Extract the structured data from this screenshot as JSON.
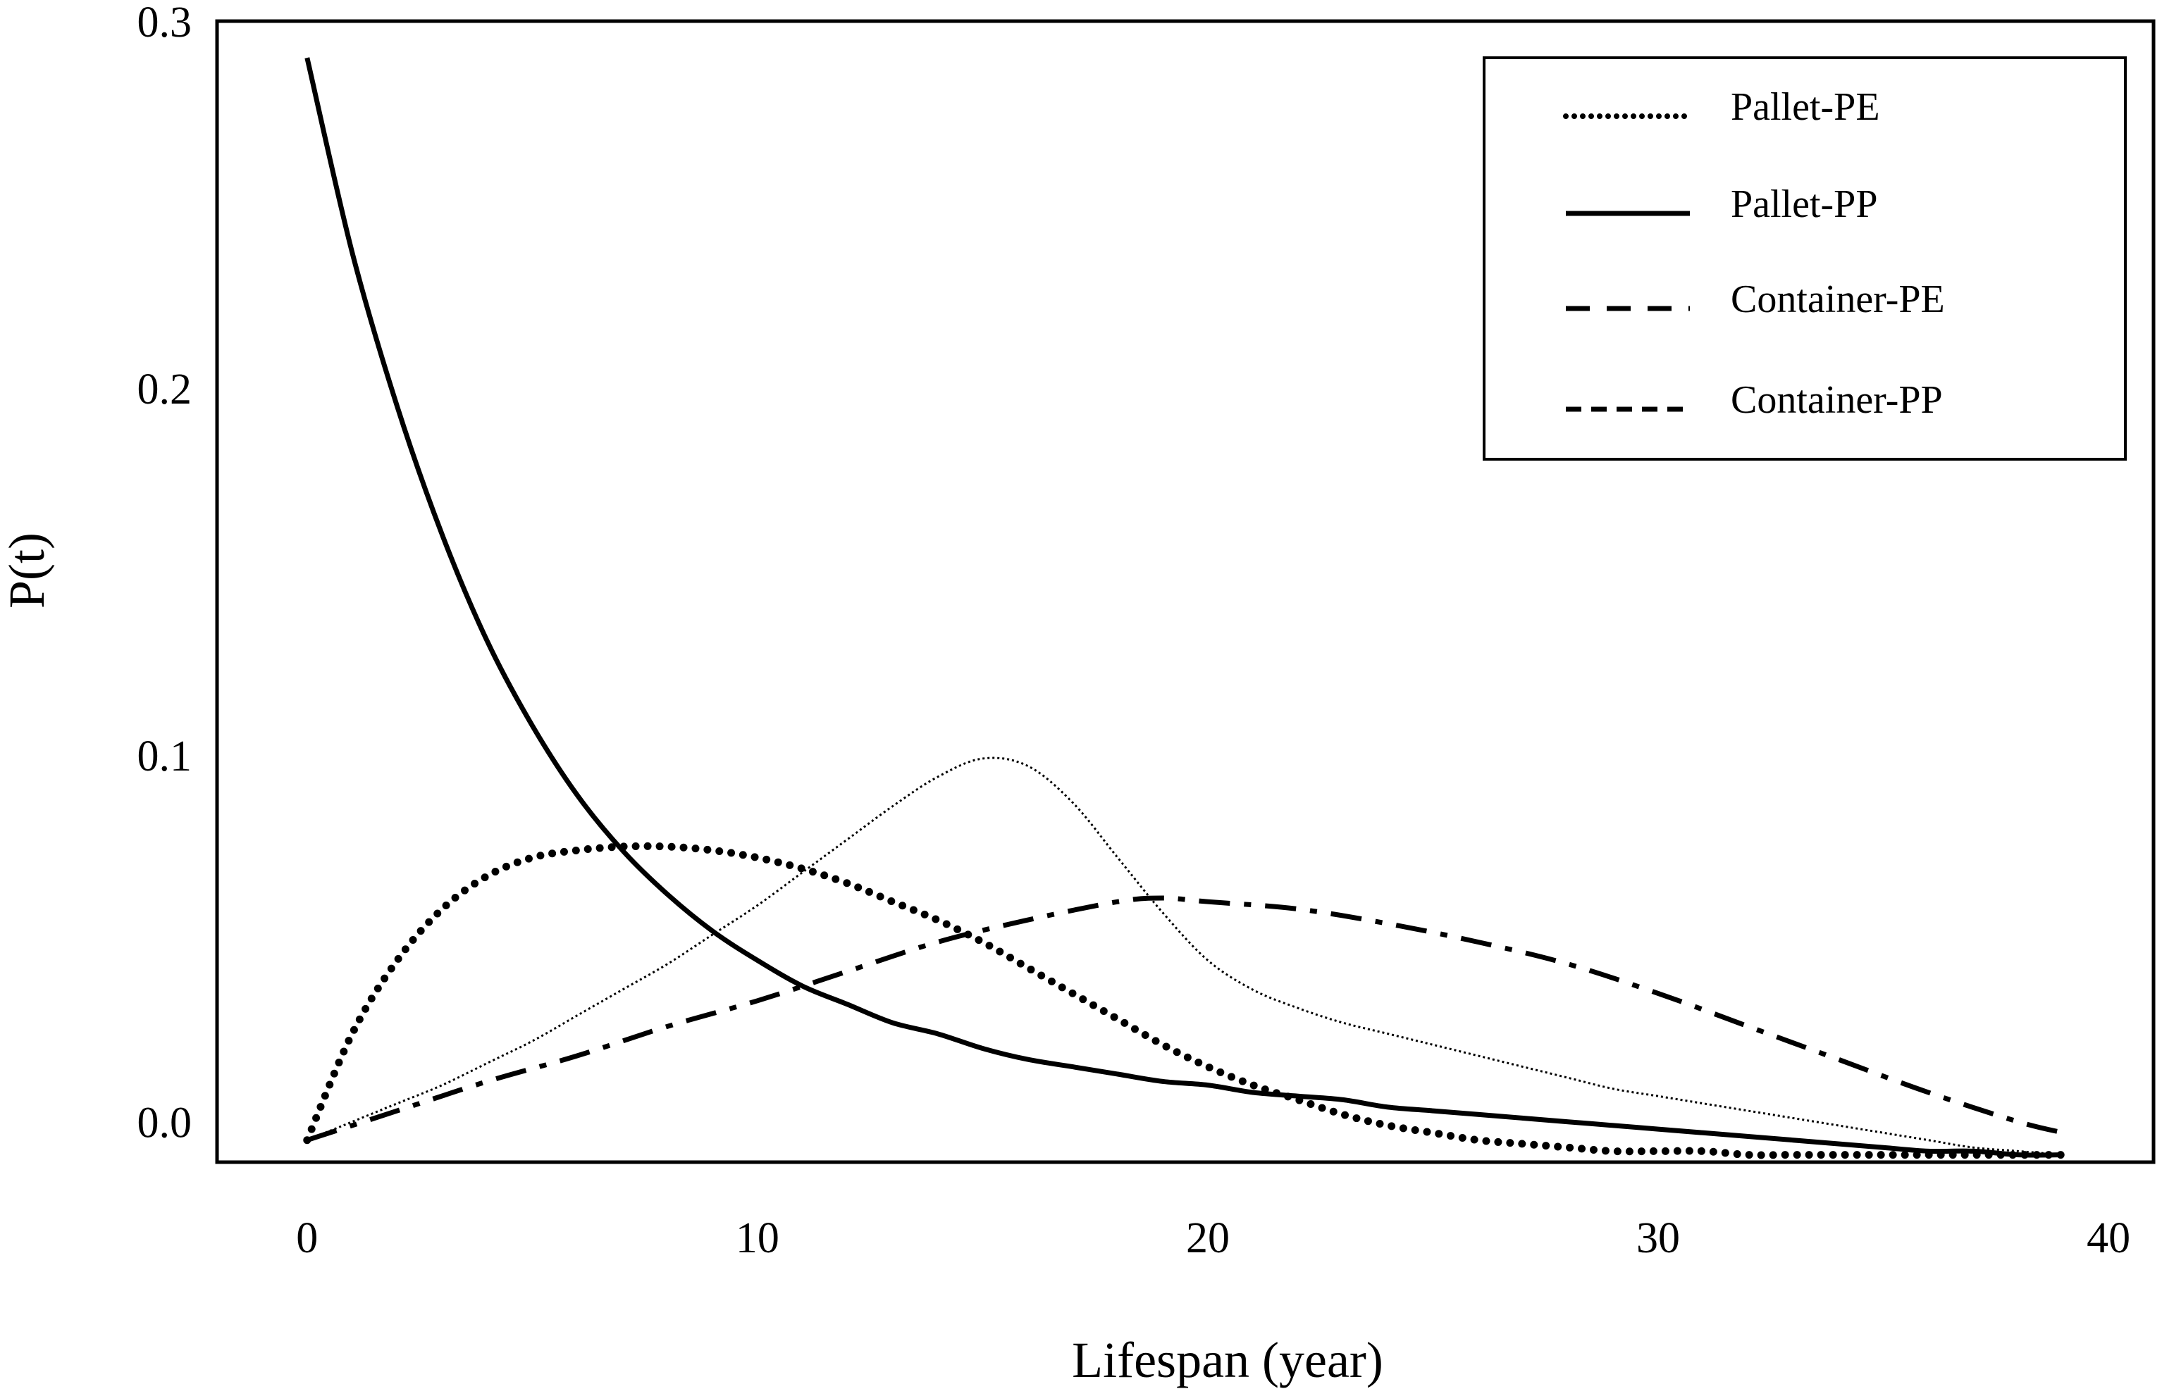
{
  "chart_data": {
    "type": "line",
    "title": "",
    "xlabel": "Lifespan (year)",
    "ylabel": "P(t)",
    "xlim": [
      -2,
      41
    ],
    "ylim": [
      -0.011,
      0.3
    ],
    "xticks": [
      0,
      10,
      20,
      30,
      40
    ],
    "xtick_labels": [
      "0",
      "10",
      "20",
      "30",
      "40"
    ],
    "yticks": [
      0.0,
      0.1,
      0.2,
      0.3
    ],
    "ytick_labels": [
      "0.0",
      "0.1",
      "0.2",
      "0.3"
    ],
    "grid": false,
    "legend_position": "top-right",
    "series": [
      {
        "name": "Pallet-PE",
        "style": "dotted-bold",
        "x": [
          0,
          1,
          2,
          3,
          4,
          5,
          6,
          7,
          8,
          9,
          10,
          11,
          12,
          13,
          14,
          15,
          16,
          17,
          18,
          19,
          20,
          21,
          22,
          23,
          24,
          25,
          26,
          27,
          28,
          29,
          30,
          31,
          32,
          33,
          34,
          35,
          36,
          37,
          38,
          39
        ],
        "values": [
          -0.005,
          0.024,
          0.044,
          0.058,
          0.067,
          0.072,
          0.074,
          0.075,
          0.075,
          0.074,
          0.072,
          0.069,
          0.065,
          0.06,
          0.055,
          0.049,
          0.042,
          0.035,
          0.028,
          0.021,
          0.015,
          0.01,
          0.006,
          0.002,
          -0.001,
          -0.003,
          -0.005,
          -0.006,
          -0.007,
          -0.008,
          -0.008,
          -0.008,
          -0.009,
          -0.009,
          -0.009,
          -0.009,
          -0.009,
          -0.009,
          -0.009,
          -0.009
        ]
      },
      {
        "name": "Pallet-PP",
        "style": "solid",
        "x": [
          0,
          1,
          2,
          3,
          4,
          5,
          6,
          7,
          8,
          9,
          10,
          11,
          12,
          13,
          14,
          15,
          16,
          17,
          18,
          19,
          20,
          21,
          22,
          23,
          24,
          25,
          26,
          27,
          28,
          29,
          30,
          31,
          32,
          33,
          34,
          35,
          36,
          37,
          38,
          39
        ],
        "values": [
          0.29,
          0.237,
          0.195,
          0.16,
          0.131,
          0.108,
          0.089,
          0.074,
          0.062,
          0.052,
          0.044,
          0.037,
          0.032,
          0.027,
          0.024,
          0.02,
          0.017,
          0.015,
          0.013,
          0.011,
          0.01,
          0.008,
          0.007,
          0.006,
          0.004,
          0.003,
          0.002,
          0.001,
          0.0,
          -0.001,
          -0.002,
          -0.003,
          -0.004,
          -0.005,
          -0.006,
          -0.007,
          -0.008,
          -0.008,
          -0.009,
          -0.009
        ]
      },
      {
        "name": "Container-PE",
        "style": "thin-dotted",
        "x": [
          0,
          1,
          2,
          3,
          4,
          5,
          6,
          7,
          8,
          9,
          10,
          11,
          12,
          13,
          14,
          15,
          16,
          17,
          18,
          19,
          20,
          21,
          22,
          23,
          24,
          25,
          26,
          27,
          28,
          29,
          30,
          31,
          32,
          33,
          34,
          35,
          36,
          37,
          38,
          39
        ],
        "values": [
          -0.005,
          0.0,
          0.005,
          0.01,
          0.016,
          0.022,
          0.029,
          0.036,
          0.043,
          0.051,
          0.059,
          0.068,
          0.077,
          0.086,
          0.094,
          0.099,
          0.097,
          0.087,
          0.072,
          0.057,
          0.044,
          0.036,
          0.031,
          0.027,
          0.024,
          0.021,
          0.018,
          0.015,
          0.012,
          0.009,
          0.007,
          0.005,
          0.003,
          0.001,
          -0.001,
          -0.003,
          -0.005,
          -0.007,
          -0.008,
          -0.009
        ]
      },
      {
        "name": "Container-PP",
        "style": "dash-dot",
        "x": [
          0,
          2,
          4,
          6,
          8,
          10,
          12,
          14,
          16,
          18,
          19,
          20,
          22,
          24,
          26,
          28,
          30,
          32,
          34,
          36,
          38,
          39
        ],
        "values": [
          -0.005,
          0.003,
          0.011,
          0.018,
          0.026,
          0.033,
          0.041,
          0.049,
          0.055,
          0.06,
          0.061,
          0.06,
          0.058,
          0.054,
          0.049,
          0.043,
          0.035,
          0.026,
          0.017,
          0.008,
          0.0,
          -0.003
        ]
      }
    ]
  }
}
